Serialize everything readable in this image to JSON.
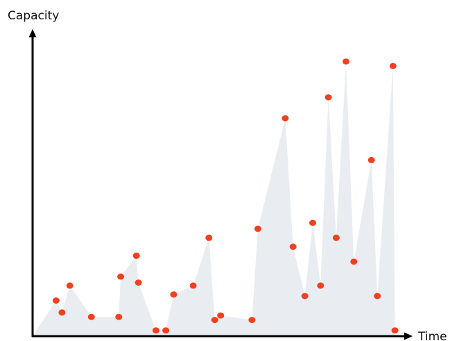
{
  "chart_data": {
    "type": "area",
    "title": "",
    "xlabel": "Time",
    "ylabel": "Capacity",
    "axis_ticks": false,
    "grid": false,
    "legend": "none",
    "xlim": [
      0,
      100
    ],
    "ylim": [
      0,
      100
    ],
    "colors": {
      "area_fill": "#e9edf1",
      "marker": "#f1401f",
      "axis": "#000000"
    },
    "points": [
      {
        "x": 6,
        "y": 11
      },
      {
        "x": 7.5,
        "y": 7
      },
      {
        "x": 9.5,
        "y": 16
      },
      {
        "x": 15,
        "y": 5.5
      },
      {
        "x": 22,
        "y": 5.5
      },
      {
        "x": 22.5,
        "y": 19
      },
      {
        "x": 26.5,
        "y": 26
      },
      {
        "x": 27,
        "y": 17
      },
      {
        "x": 31.5,
        "y": 1
      },
      {
        "x": 34,
        "y": 1
      },
      {
        "x": 36,
        "y": 13
      },
      {
        "x": 41,
        "y": 16
      },
      {
        "x": 45,
        "y": 32
      },
      {
        "x": 46.5,
        "y": 4.5
      },
      {
        "x": 48,
        "y": 6
      },
      {
        "x": 56,
        "y": 4.5
      },
      {
        "x": 57.5,
        "y": 35
      },
      {
        "x": 64.5,
        "y": 72
      },
      {
        "x": 66.5,
        "y": 29
      },
      {
        "x": 69.5,
        "y": 12.5
      },
      {
        "x": 71.5,
        "y": 37
      },
      {
        "x": 73.5,
        "y": 16
      },
      {
        "x": 75.5,
        "y": 79
      },
      {
        "x": 77.5,
        "y": 32
      },
      {
        "x": 80,
        "y": 91
      },
      {
        "x": 82,
        "y": 24
      },
      {
        "x": 86.5,
        "y": 58
      },
      {
        "x": 88,
        "y": 12.5
      },
      {
        "x": 92,
        "y": 89.5
      },
      {
        "x": 92.5,
        "y": 1
      }
    ]
  }
}
